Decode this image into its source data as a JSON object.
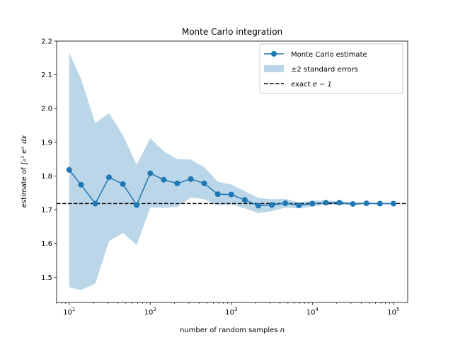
{
  "chart_data": {
    "type": "line",
    "title": "Monte Carlo integration",
    "xlabel_text": "number of random samples ",
    "xlabel_var": "n",
    "ylabel_text": "estimate of ",
    "ylabel_math": "∫₀¹ eˣ dx",
    "xscale": "log",
    "xlim": [
      7,
      150000
    ],
    "ylim": [
      1.425,
      2.2
    ],
    "x_ticks": [
      10,
      100,
      1000,
      10000,
      100000
    ],
    "x_tick_labels": [
      {
        "base": "10",
        "exp": "1"
      },
      {
        "base": "10",
        "exp": "2"
      },
      {
        "base": "10",
        "exp": "3"
      },
      {
        "base": "10",
        "exp": "4"
      },
      {
        "base": "10",
        "exp": "5"
      }
    ],
    "y_ticks": [
      1.5,
      1.6,
      1.7,
      1.8,
      1.9,
      2.0,
      2.1,
      2.2
    ],
    "y_tick_labels": [
      "1.5",
      "1.6",
      "1.7",
      "1.8",
      "1.9",
      "2.0",
      "2.1",
      "2.2"
    ],
    "grid": false,
    "legend_position": "top-right",
    "x": [
      10,
      14,
      21,
      31,
      46,
      68,
      100,
      147,
      215,
      316,
      464,
      681,
      1000,
      1468,
      2154,
      3162,
      4642,
      6813,
      10000,
      14678,
      21544,
      31623,
      46416,
      68129,
      100000
    ],
    "series": [
      {
        "name": "Monte Carlo estimate",
        "kind": "line-marker",
        "color": "#1f77b4",
        "values": [
          1.818,
          1.774,
          1.718,
          1.796,
          1.776,
          1.714,
          1.808,
          1.789,
          1.778,
          1.791,
          1.778,
          1.746,
          1.745,
          1.729,
          1.712,
          1.714,
          1.719,
          1.713,
          1.718,
          1.721,
          1.721,
          1.717,
          1.719,
          1.718,
          1.718
        ]
      },
      {
        "name": "±2 standard errors",
        "kind": "band",
        "color": "#1f77b4",
        "opacity": 0.3,
        "lower": [
          1.47,
          1.462,
          1.481,
          1.607,
          1.631,
          1.595,
          1.706,
          1.706,
          1.708,
          1.736,
          1.731,
          1.713,
          1.716,
          1.704,
          1.69,
          1.696,
          1.706,
          1.704,
          1.709,
          1.715,
          1.716,
          1.713,
          1.716,
          1.716,
          1.716
        ],
        "upper": [
          2.166,
          2.088,
          1.957,
          1.986,
          1.921,
          1.833,
          1.912,
          1.873,
          1.85,
          1.849,
          1.826,
          1.783,
          1.775,
          1.755,
          1.735,
          1.731,
          1.732,
          1.722,
          1.727,
          1.727,
          1.726,
          1.722,
          1.722,
          1.721,
          1.72
        ]
      },
      {
        "name": "exact e − 1",
        "name_text": "exact ",
        "name_math": "e − 1",
        "kind": "hline",
        "color": "#000000",
        "dash": true,
        "value": 1.71828
      }
    ]
  }
}
